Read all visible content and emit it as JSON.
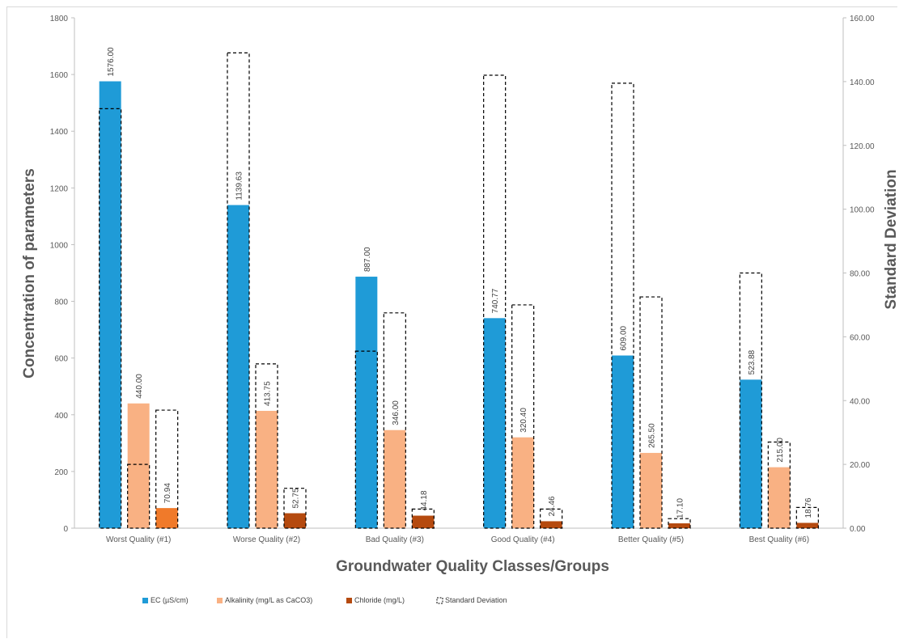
{
  "chart_data": {
    "type": "bar",
    "xlabel": "Groundwater Quality Classes/Groups",
    "ylabel": "Concentration of parameters",
    "y2label": "Standard Deviation",
    "ylim": [
      0,
      1800
    ],
    "y2lim": [
      0,
      160
    ],
    "yticks": [
      "0",
      "200",
      "400",
      "600",
      "800",
      "1000",
      "1200",
      "1400",
      "1600",
      "1800"
    ],
    "y2ticks": [
      "0.00",
      "20.00",
      "40.00",
      "60.00",
      "80.00",
      "100.00",
      "120.00",
      "140.00",
      "160.00"
    ],
    "categories": [
      "Worst Quality (#1)",
      "Worse Quality (#2)",
      "Bad Quality (#3)",
      "Good Quality (#4)",
      "Better Quality (#5)",
      "Best Quality (#6)"
    ],
    "series": [
      {
        "name": "EC (µS/cm)",
        "color": "#1f9bd7",
        "axis": "left",
        "values": [
          1576.0,
          1139.63,
          887.0,
          740.77,
          609.0,
          523.88
        ],
        "labels": [
          "1576.00",
          "1139.63",
          "887.00",
          "740.77",
          "609.00",
          "523.88"
        ],
        "std": [
          131.5,
          149.0,
          55.5,
          142.0,
          139.5,
          80.0
        ]
      },
      {
        "name": "Alkalinity (mg/L as CaCO3)",
        "color": "#f9b183",
        "axis": "left",
        "values": [
          440.0,
          413.75,
          346.0,
          320.4,
          265.5,
          215.0
        ],
        "labels": [
          "440.00",
          "413.75",
          "346.00",
          "320.40",
          "265.50",
          "215.00"
        ],
        "std": [
          20.0,
          51.5,
          67.5,
          70.0,
          72.5,
          27.0
        ]
      },
      {
        "name": "Chloride (mg/L)",
        "color": "#b54a0f",
        "first_color": "#f07a2a",
        "axis": "left",
        "values": [
          70.94,
          52.75,
          44.18,
          24.46,
          17.1,
          18.76
        ],
        "labels": [
          "70.94",
          "52.75",
          "44.18",
          "24.46",
          "17.10",
          "18.76"
        ],
        "std": [
          37.0,
          12.5,
          6.0,
          6.0,
          3.0,
          6.5
        ]
      }
    ],
    "legend": {
      "placement": "bottom",
      "items": [
        {
          "label": "EC (µS/cm)",
          "color": "#1f9bd7",
          "style": "solid"
        },
        {
          "label": "Alkalinity (mg/L as CaCO3)",
          "color": "#f9b183",
          "style": "solid"
        },
        {
          "label": "Chloride (mg/L)",
          "color": "#b54a0f",
          "style": "solid"
        },
        {
          "label": "Standard Deviation",
          "color": "#000000",
          "style": "dashed"
        }
      ]
    }
  }
}
